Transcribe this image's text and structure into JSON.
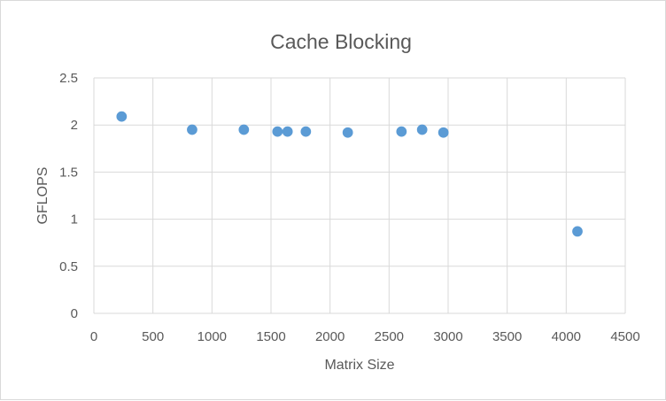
{
  "chart_data": {
    "type": "scatter",
    "title": "Cache Blocking",
    "xlabel": "Matrix Size",
    "ylabel": "GFLOPS",
    "xlim": [
      0,
      4500
    ],
    "ylim": [
      0,
      2.5
    ],
    "x_ticks": [
      "0",
      "500",
      "1000",
      "1500",
      "2000",
      "2500",
      "3000",
      "3500",
      "4000",
      "4500"
    ],
    "y_ticks": [
      "0",
      "0.5",
      "1",
      "1.5",
      "2",
      "2.5"
    ],
    "grid": true,
    "legend": "none",
    "series": [
      {
        "color": "#5b9bd5",
        "points": [
          {
            "x": 235,
            "y": 2.09
          },
          {
            "x": 832,
            "y": 1.95
          },
          {
            "x": 1270,
            "y": 1.95
          },
          {
            "x": 1555,
            "y": 1.93
          },
          {
            "x": 1640,
            "y": 1.93
          },
          {
            "x": 1795,
            "y": 1.93
          },
          {
            "x": 2150,
            "y": 1.92
          },
          {
            "x": 2605,
            "y": 1.93
          },
          {
            "x": 2780,
            "y": 1.95
          },
          {
            "x": 2960,
            "y": 1.92
          },
          {
            "x": 4095,
            "y": 0.87
          }
        ]
      }
    ]
  }
}
